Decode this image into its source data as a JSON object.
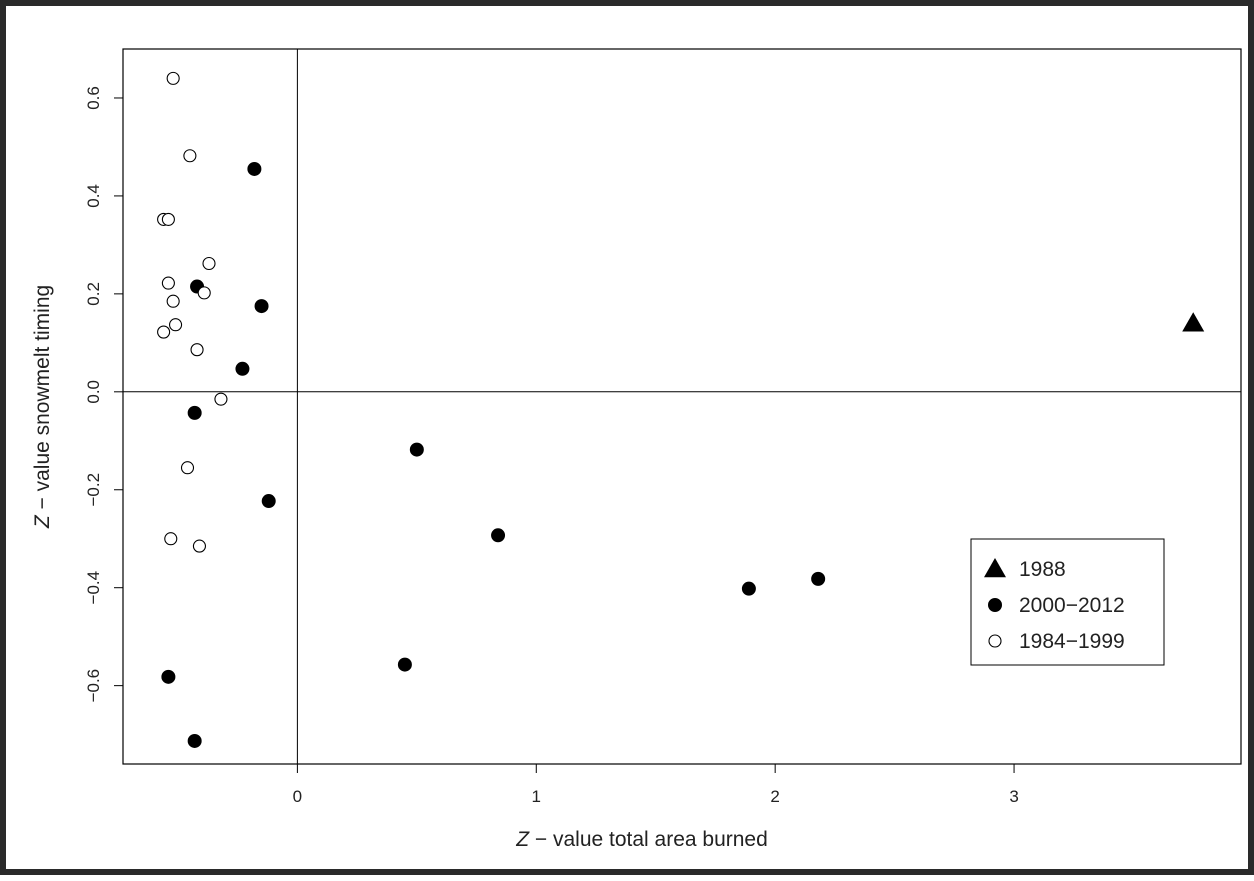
{
  "chart_data": {
    "type": "scatter",
    "title": "",
    "xlabel": "value total area burned",
    "xlabel_italic_prefix": "Z",
    "xlabel_connector": " − ",
    "ylabel": "value snowmelt timing",
    "ylabel_italic_prefix": "Z",
    "ylabel_connector": " − ",
    "xlim": [
      -0.73,
      3.95
    ],
    "ylim": [
      -0.76,
      0.7
    ],
    "xticks": [
      0,
      1,
      2,
      3
    ],
    "xtick_labels": [
      "0",
      "1",
      "2",
      "3"
    ],
    "yticks": [
      -0.6,
      -0.4,
      -0.2,
      0.0,
      0.2,
      0.4,
      0.6
    ],
    "ytick_labels": [
      "−0.6",
      "−0.4",
      "−0.2",
      "0.0",
      "0.2",
      "0.4",
      "0.6"
    ],
    "reference_lines": {
      "x": 0,
      "y": 0
    },
    "legend_position": "center-right",
    "series": [
      {
        "name": "1988",
        "marker": "filled-triangle",
        "color": "#000000",
        "points": [
          [
            3.75,
            0.14
          ]
        ]
      },
      {
        "name": "2000−2012",
        "marker": "filled-circle",
        "color": "#000000",
        "points": [
          [
            -0.18,
            0.455
          ],
          [
            -0.42,
            0.215
          ],
          [
            -0.15,
            0.175
          ],
          [
            -0.23,
            0.047
          ],
          [
            -0.43,
            -0.043
          ],
          [
            0.5,
            -0.118
          ],
          [
            -0.12,
            -0.223
          ],
          [
            0.84,
            -0.293
          ],
          [
            1.89,
            -0.402
          ],
          [
            2.18,
            -0.382
          ],
          [
            0.45,
            -0.557
          ],
          [
            -0.54,
            -0.582
          ],
          [
            -0.43,
            -0.713
          ]
        ]
      },
      {
        "name": "1984−1999",
        "marker": "open-circle",
        "color": "#000000",
        "points": [
          [
            -0.52,
            0.64
          ],
          [
            -0.45,
            0.482
          ],
          [
            -0.56,
            0.352
          ],
          [
            -0.54,
            0.352
          ],
          [
            -0.37,
            0.262
          ],
          [
            -0.54,
            0.222
          ],
          [
            -0.39,
            0.202
          ],
          [
            -0.52,
            0.185
          ],
          [
            -0.51,
            0.137
          ],
          [
            -0.56,
            0.122
          ],
          [
            -0.42,
            0.086
          ],
          [
            -0.32,
            -0.015
          ],
          [
            -0.46,
            -0.155
          ],
          [
            -0.53,
            -0.3
          ],
          [
            -0.41,
            -0.315
          ]
        ]
      }
    ]
  }
}
